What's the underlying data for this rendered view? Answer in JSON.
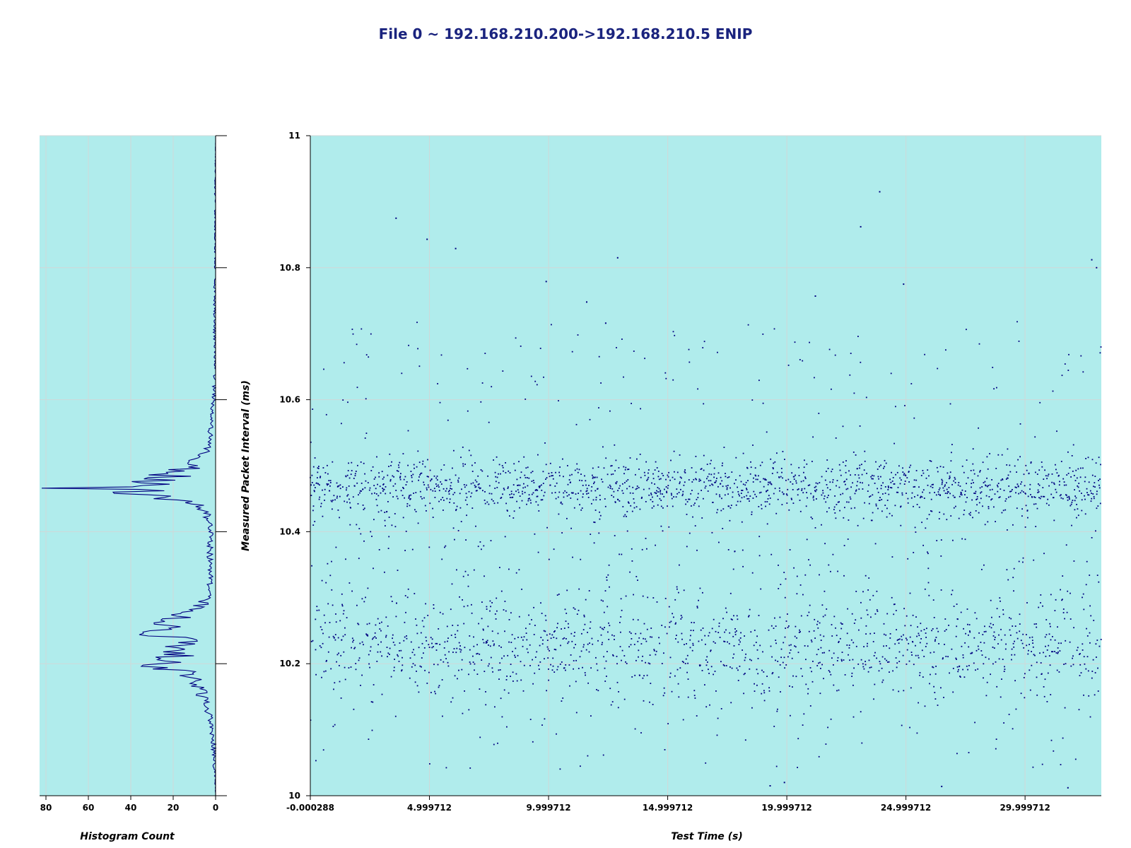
{
  "title": "File 0 ~ 192.168.210.200->192.168.210.5 ENIP",
  "colors": {
    "plot_bg": "#b0ecec",
    "marker": "#000080",
    "grid": "#cfd8d8",
    "title": "#1a237e"
  },
  "chart_data": [
    {
      "type": "line",
      "name": "histogram",
      "orientation": "horizontal",
      "xlabel": "Histogram Count",
      "ylabel": "",
      "xlim": [
        0,
        83
      ],
      "x_reversed": true,
      "ylim": [
        10,
        11
      ],
      "xticks": [
        80,
        60,
        40,
        20,
        0
      ],
      "xtick_labels": [
        "80",
        "60",
        "40",
        "20",
        "0"
      ],
      "grid": true,
      "bin_width_ms": 0.002,
      "profile": [
        {
          "y": 10.0,
          "count": 0
        },
        {
          "y": 10.04,
          "count": 1
        },
        {
          "y": 10.08,
          "count": 2
        },
        {
          "y": 10.11,
          "count": 3
        },
        {
          "y": 10.13,
          "count": 5
        },
        {
          "y": 10.15,
          "count": 8
        },
        {
          "y": 10.17,
          "count": 12
        },
        {
          "y": 10.185,
          "count": 18
        },
        {
          "y": 10.195,
          "count": 35
        },
        {
          "y": 10.205,
          "count": 30
        },
        {
          "y": 10.22,
          "count": 24
        },
        {
          "y": 10.235,
          "count": 20
        },
        {
          "y": 10.245,
          "count": 36
        },
        {
          "y": 10.26,
          "count": 30
        },
        {
          "y": 10.27,
          "count": 22
        },
        {
          "y": 10.285,
          "count": 12
        },
        {
          "y": 10.3,
          "count": 5
        },
        {
          "y": 10.33,
          "count": 3
        },
        {
          "y": 10.37,
          "count": 4
        },
        {
          "y": 10.4,
          "count": 3
        },
        {
          "y": 10.43,
          "count": 6
        },
        {
          "y": 10.445,
          "count": 15
        },
        {
          "y": 10.455,
          "count": 40
        },
        {
          "y": 10.466,
          "count": 82
        },
        {
          "y": 10.47,
          "count": 62
        },
        {
          "y": 10.478,
          "count": 40
        },
        {
          "y": 10.49,
          "count": 25
        },
        {
          "y": 10.51,
          "count": 10
        },
        {
          "y": 10.53,
          "count": 4
        },
        {
          "y": 10.56,
          "count": 3
        },
        {
          "y": 10.6,
          "count": 2
        },
        {
          "y": 10.65,
          "count": 1
        },
        {
          "y": 10.7,
          "count": 1
        },
        {
          "y": 10.75,
          "count": 1
        },
        {
          "y": 10.8,
          "count": 0.5
        },
        {
          "y": 10.88,
          "count": 0.5
        },
        {
          "y": 10.92,
          "count": 0.5
        },
        {
          "y": 11.0,
          "count": 0
        }
      ]
    },
    {
      "type": "scatter",
      "name": "intervals",
      "xlabel": "Test Time (s)",
      "ylabel": "Measured Packet Interval (ms)",
      "xlim": [
        -0.000288,
        33.2
      ],
      "ylim": [
        10,
        11
      ],
      "xticks": [
        -0.000288,
        4.999712,
        9.999712,
        14.999712,
        19.999712,
        24.999712,
        29.999712
      ],
      "xtick_labels": [
        "-0.000288",
        "4.999712",
        "9.999712",
        "14.999712",
        "19.999712",
        "24.999712",
        "29.999712"
      ],
      "yticks": [
        10,
        10.2,
        10.4,
        10.6,
        10.8,
        11
      ],
      "ytick_labels": [
        "10",
        "10.2",
        "10.4",
        "10.6",
        "10.8",
        "11"
      ],
      "grid": true,
      "total_points": 3300,
      "sampling": "one point every 0.01 s",
      "distribution": [
        {
          "center": 10.468,
          "spread": 0.022,
          "share": 0.47
        },
        {
          "center": 10.225,
          "spread": 0.04,
          "share": 0.4
        },
        {
          "center": 10.5,
          "spread": 0.45,
          "share": 0.13
        }
      ],
      "notable_points": [
        {
          "x": 3.6,
          "y": 10.875
        },
        {
          "x": 4.9,
          "y": 10.843
        },
        {
          "x": 6.1,
          "y": 10.829
        },
        {
          "x": 12.9,
          "y": 10.815
        },
        {
          "x": 9.9,
          "y": 10.779
        },
        {
          "x": 11.6,
          "y": 10.748
        },
        {
          "x": 12.4,
          "y": 10.716
        },
        {
          "x": 23.9,
          "y": 10.915
        },
        {
          "x": 23.1,
          "y": 10.862
        },
        {
          "x": 32.8,
          "y": 10.812
        },
        {
          "x": 33.0,
          "y": 10.8
        },
        {
          "x": 24.9,
          "y": 10.775
        },
        {
          "x": 21.2,
          "y": 10.757
        },
        {
          "x": 19.9,
          "y": 10.02
        },
        {
          "x": 19.3,
          "y": 10.015
        },
        {
          "x": 26.5,
          "y": 10.014
        },
        {
          "x": 31.8,
          "y": 10.012
        }
      ]
    }
  ]
}
